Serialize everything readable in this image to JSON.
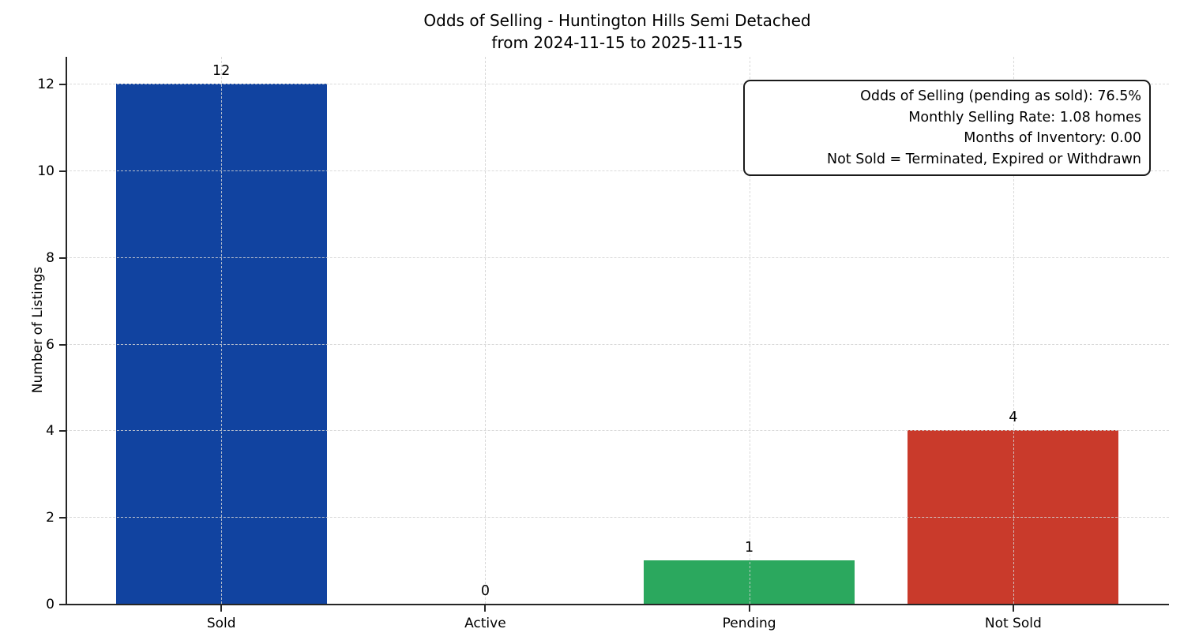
{
  "chart_data": {
    "type": "bar",
    "title": "Odds of Selling - Huntington Hills Semi Detached",
    "subtitle": "from 2024-11-15 to 2025-11-15",
    "categories": [
      "Sold",
      "Active",
      "Pending",
      "Not Sold"
    ],
    "values": [
      12,
      0,
      1,
      4
    ],
    "bar_value_labels": [
      "12",
      "0",
      "1",
      "4"
    ],
    "bar_colors": [
      "#1143A0",
      null,
      "#2BA85E",
      "#C93A2B"
    ],
    "ylabel": "Number of Listings",
    "xlabel": "",
    "yticks": [
      0,
      2,
      4,
      6,
      8,
      10,
      12
    ],
    "ylim": [
      0,
      12.62
    ],
    "grid": true,
    "grid_style": "dashed",
    "legend_position": "none",
    "annotation": {
      "lines": [
        "Odds of Selling (pending as sold): 76.5%",
        "Monthly Selling Rate: 1.08 homes",
        "Months of Inventory: 0.00",
        "Not Sold = Terminated, Expired or Withdrawn"
      ]
    },
    "colors": {
      "axis": "#262626",
      "grid": "#d3d3d3",
      "text": "#000000",
      "background": "#ffffff"
    }
  }
}
